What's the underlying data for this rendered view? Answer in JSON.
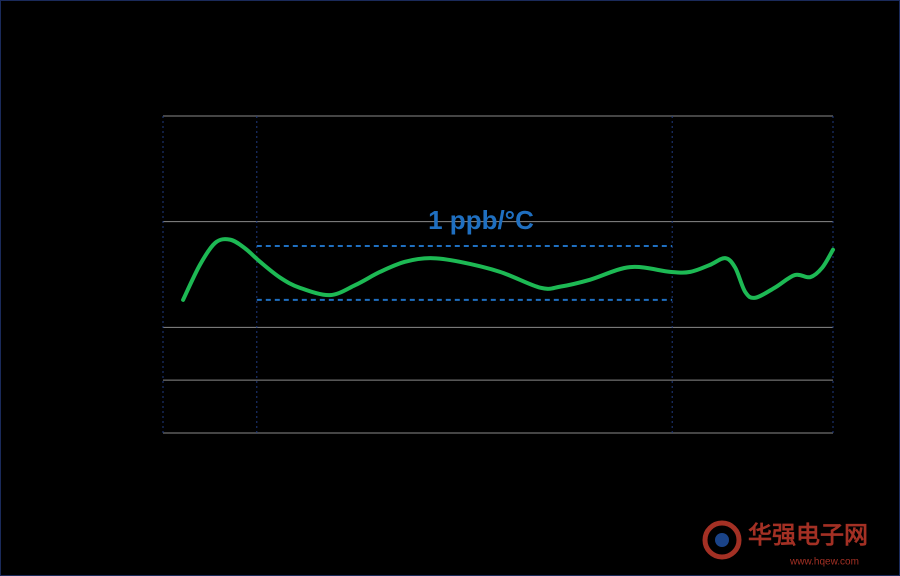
{
  "chart_data": {
    "type": "line",
    "x": [
      3.0,
      5.5,
      7.8,
      10.0,
      12.2,
      14.5,
      17.5,
      20.4,
      24.9,
      28.7,
      32.4,
      36.1,
      39.9,
      44.3,
      50.3,
      56.3,
      59.3,
      63.7,
      69.7,
      75.7,
      78.7,
      81.6,
      83.9,
      85.4,
      86.9,
      88.4,
      91.3,
      94.3,
      96.6,
      98.4,
      100
    ],
    "series": [
      {
        "color": "#1db954",
        "values": [
          2.52,
          3.18,
          3.6,
          3.66,
          3.5,
          3.24,
          2.94,
          2.75,
          2.61,
          2.8,
          3.05,
          3.24,
          3.31,
          3.24,
          3.05,
          2.75,
          2.77,
          2.9,
          3.14,
          3.05,
          3.05,
          3.18,
          3.31,
          3.13,
          2.67,
          2.56,
          2.75,
          2.99,
          2.95,
          3.13,
          3.47
        ]
      }
    ],
    "xlim": [
      0,
      100
    ],
    "xticks": [
      0,
      14,
      76,
      100
    ],
    "ylim": [
      0,
      6
    ],
    "yticks": [
      0,
      1,
      2,
      4,
      6
    ],
    "grid": true,
    "band": {
      "x0": 14,
      "x1": 76,
      "y0": 2.52,
      "y1": 3.54,
      "color": "#1f6fc0"
    },
    "annotation": "1 ppb/°C",
    "watermark": {
      "name": "华强电子网",
      "url": "www.hqew.com"
    }
  }
}
